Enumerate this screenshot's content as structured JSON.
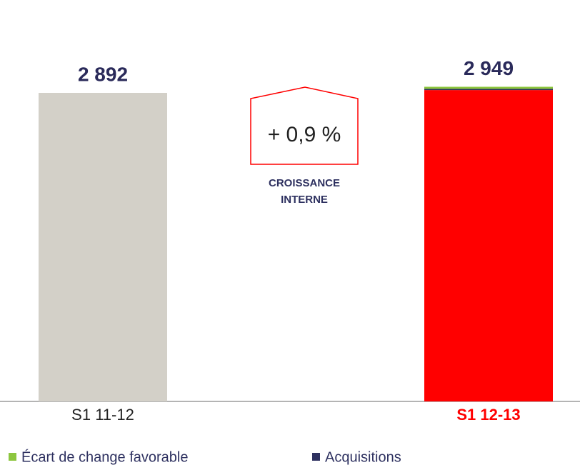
{
  "chart_data": {
    "type": "stacked_bar",
    "categories": [
      "S1 11-12",
      "S1 12-13"
    ],
    "category_colors": [
      "#222222",
      "#ff0000"
    ],
    "category_bold": [
      false,
      true
    ],
    "series": [
      {
        "colors": [
          "#d3d0c8",
          "#ff0000"
        ],
        "values": [
          2892,
          2918
        ]
      },
      {
        "name": "Acquisitions",
        "color": "#2e3160",
        "values": [
          null,
          11
        ]
      },
      {
        "name": "Écart de change favorable",
        "color": "#8dc63f",
        "values": [
          null,
          20
        ]
      }
    ],
    "totals": [
      2892,
      2949
    ],
    "total_labels": [
      "2 892",
      "2 949"
    ],
    "annotation": {
      "text": "+ 0,9 %",
      "label": [
        "CROISSANCE",
        "INTERNE"
      ],
      "color": "#ff0000"
    }
  }
}
